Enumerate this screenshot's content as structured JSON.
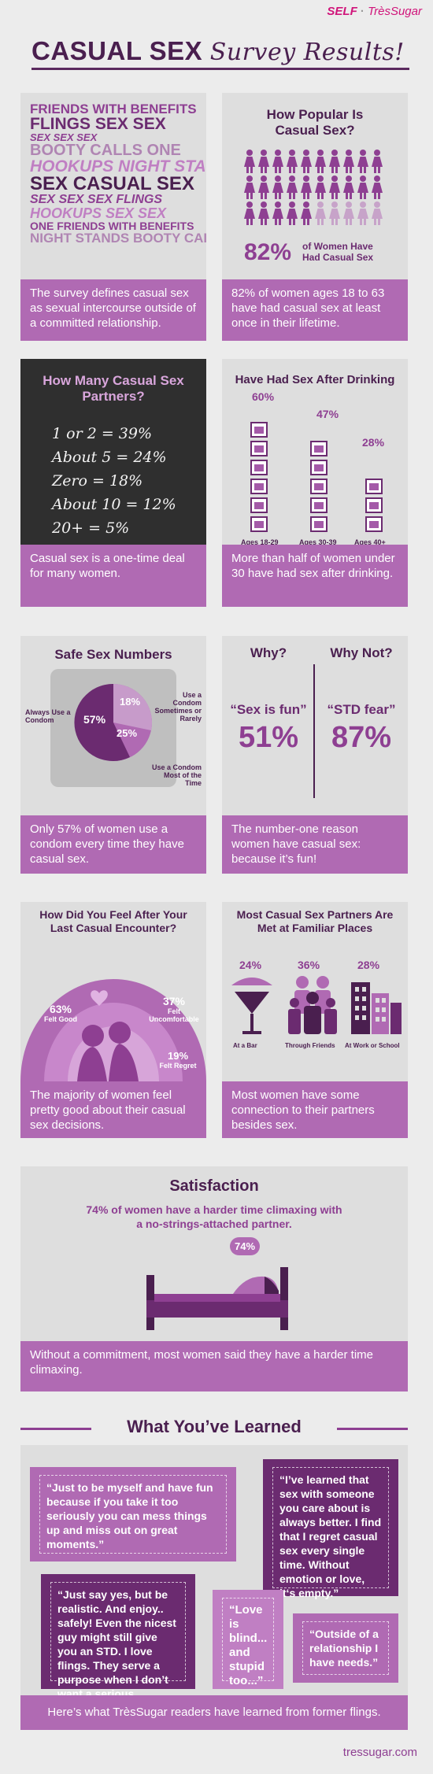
{
  "brand": {
    "self": "SELF",
    "separator": "·",
    "tres": "TrèsSugar"
  },
  "title": {
    "main": "CASUAL SEX",
    "script": "Survey Results!"
  },
  "p1": {
    "cloud": [
      "FRIENDS WITH BENEFITS",
      "FLINGS SEX SEX",
      "SEX SEX SEX",
      "BOOTY CALLS ONE",
      "HOOKUPS NIGHT STANDS",
      "SEX CASUAL SEX",
      "SEX SEX SEX FLINGS",
      "HOOKUPS SEX SEX",
      "ONE FRIENDS WITH BENEFITS",
      "NIGHT STANDS BOOTY CALLS"
    ],
    "caption": "The survey defines casual sex as sexual intercourse outside of a committed relationship."
  },
  "p2": {
    "heading": "How Popular Is Casual Sex?",
    "pct": "82%",
    "label": "of Women Have Had Casual Sex",
    "value_fraction": 0.82,
    "caption": "82% of women ages 18 to 63 have had casual sex at least once in their lifetime."
  },
  "p3": {
    "heading": "How Many Casual Sex Partners?",
    "lines": [
      "1 or 2 = 39%",
      "About 5 = 24%",
      "Zero = 18%",
      "About 10 = 12%",
      "20+ = 5%"
    ],
    "caption": "Casual sex is a one-time deal for many women."
  },
  "p4": {
    "heading": "Have Had Sex After Drinking",
    "groups": [
      {
        "pct": "60%",
        "label": "Ages 18-29",
        "value": 60
      },
      {
        "pct": "47%",
        "label": "Ages 30-39",
        "value": 47
      },
      {
        "pct": "28%",
        "label": "Ages 40+",
        "value": 28
      }
    ],
    "caption": "More than half of women under 30 have had sex after drinking."
  },
  "p5": {
    "heading": "Safe Sex Numbers",
    "slices": [
      {
        "pct": "57%",
        "label": "Always Use a Condom",
        "value": 57
      },
      {
        "pct": "18%",
        "label": "Use a Condom Sometimes or Rarely",
        "value": 18
      },
      {
        "pct": "25%",
        "label": "Use a Condom Most of the Time",
        "value": 25
      }
    ],
    "caption": "Only 57% of women use a condom every time they have casual sex."
  },
  "p6": {
    "why": "Why?",
    "why_not": "Why Not?",
    "left_quote": "“Sex is fun”",
    "right_quote": "“STD fear”",
    "left_pct": "51%",
    "right_pct": "87%",
    "caption": "The number-one reason women have casual sex: because it’s fun!"
  },
  "p7": {
    "heading": "How Did You Feel After Your Last Casual Encounter?",
    "items": [
      {
        "pct": "63%",
        "label": "Felt Good",
        "value": 63
      },
      {
        "pct": "37%",
        "label": "Felt Uncomfortable",
        "value": 37
      },
      {
        "pct": "19%",
        "label": "Felt Regret",
        "value": 19
      }
    ],
    "caption": "The majority of women feel pretty good about their casual sex decisions."
  },
  "p8": {
    "heading": "Most Casual Sex Partners Are Met at Familiar Places",
    "items": [
      {
        "pct": "24%",
        "label": "At a Bar",
        "value": 24
      },
      {
        "pct": "36%",
        "label": "Through Friends",
        "value": 36
      },
      {
        "pct": "28%",
        "label": "At Work or School",
        "value": 28
      }
    ],
    "caption": "Most women have some connection to their partners besides sex."
  },
  "p9": {
    "heading": "Satisfaction",
    "text": "74% of women have a harder time climaxing with a no-strings-attached partner.",
    "pct": "74%",
    "caption": "Without a commitment, most women said they have a harder time climaxing."
  },
  "p10": {
    "heading": "What You’ve Learned",
    "quotes": [
      "“Just to be myself and have fun because if you take it too seriously you can mess things up and miss out on great moments.”",
      "“I’ve learned that sex with someone you care about is always better. I find that I regret casual sex every single time. Without emotion or love, it‘s empty.”",
      "“Just say yes, but be realistic. And enjoy.. safely! Even the nicest guy might still give you an STD. I love flings. They serve a purpose when I don’t want a serious relationship.”",
      "“Love is blind... and stupid too...”",
      "“Outside of a relationship I have needs.”"
    ],
    "caption": "Here’s what TrèsSugar readers have learned from former flings."
  },
  "footer": {
    "url": "tressugar.com"
  },
  "colors": {
    "dark": "#4a1f4f",
    "mid": "#8e3f92",
    "light": "#b06ab3",
    "panel": "#dedede"
  }
}
